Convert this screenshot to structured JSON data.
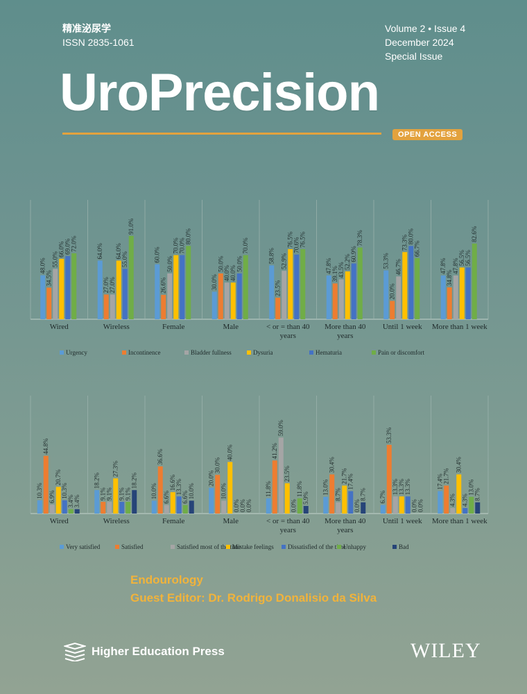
{
  "journal": {
    "chinese_title": "精准泌尿学",
    "issn": "ISSN 2835-1061",
    "volume_issue": "Volume  2 • Issue  4",
    "date": "December 2024",
    "special": "Special Issue",
    "name": "UroPrecision",
    "open_access": "OPEN ACCESS"
  },
  "colors": {
    "urgency": "#5b9bd5",
    "incontinence": "#ed7d31",
    "bladder": "#a5a5a5",
    "dysuria": "#ffc000",
    "hematuria": "#4472c4",
    "pain": "#70ad47",
    "very_satisfied": "#5b9bd5",
    "satisfied": "#ed7d31",
    "satisfied_most": "#a5a5a5",
    "mistake": "#ffc000",
    "dissatisfied": "#4472c4",
    "unhappy": "#70ad47",
    "bad": "#264478",
    "accent": "#f1b33b"
  },
  "chart_data": [
    {
      "type": "bar",
      "categories": [
        "Wired",
        "Wireless",
        "Female",
        "Male",
        "< or = than 40 years",
        "More than 40 years",
        "Until 1 week",
        "More than 1 week"
      ],
      "ylim": [
        0,
        100
      ],
      "series": [
        {
          "name": "Urgency",
          "values": [
            48.0,
            64.0,
            60.0,
            30.0,
            58.8,
            47.8,
            53.3,
            47.8
          ]
        },
        {
          "name": "Incontinence",
          "values": [
            34.5,
            27.0,
            26.6,
            50.0,
            23.5,
            39.1,
            20.0,
            34.8
          ]
        },
        {
          "name": "Bladder fullness",
          "values": [
            55.0,
            27.0,
            50.0,
            40.0,
            52.9,
            43.5,
            46.7,
            47.8
          ]
        },
        {
          "name": "Dysuria",
          "values": [
            66.0,
            64.0,
            70.0,
            40.0,
            76.5,
            52.2,
            73.3,
            56.5
          ]
        },
        {
          "name": "Hematuria",
          "values": [
            69.0,
            55.0,
            70.0,
            50.0,
            70.6,
            60.9,
            80.0,
            56.5
          ]
        },
        {
          "name": "Pain or discomfort",
          "values": [
            72.0,
            91.0,
            80.0,
            70.0,
            76.5,
            78.3,
            66.7,
            82.6
          ]
        }
      ]
    },
    {
      "type": "bar",
      "categories": [
        "Wired",
        "Wireless",
        "Female",
        "Male",
        "< or = than 40 years",
        "More than 40 years",
        "Until 1 week",
        "More than 1 week"
      ],
      "ylim": [
        0,
        70
      ],
      "series": [
        {
          "name": "Very satisfied",
          "values": [
            10.3,
            18.2,
            10.0,
            20.0,
            11.8,
            13.0,
            6.7,
            17.4
          ]
        },
        {
          "name": "Satisfied",
          "values": [
            44.8,
            9.1,
            36.6,
            30.0,
            41.2,
            30.4,
            53.3,
            21.7
          ]
        },
        {
          "name": "Satisfied most of the time",
          "values": [
            6.9,
            9.1,
            6.6,
            10.0,
            59.0,
            8.7,
            13.3,
            4.3
          ]
        },
        {
          "name": "Mistake feelings",
          "values": [
            20.7,
            27.3,
            16.6,
            40.0,
            23.5,
            21.7,
            13.3,
            30.4
          ]
        },
        {
          "name": "Dissatisfied of the time",
          "values": [
            10.3,
            9.1,
            13.3,
            0.0,
            0.0,
            17.4,
            13.3,
            4.3
          ]
        },
        {
          "name": "Unhappy",
          "values": [
            3.4,
            9.1,
            6.6,
            0.0,
            11.8,
            0.0,
            0.0,
            13.0
          ]
        },
        {
          "name": "Bad",
          "values": [
            3.4,
            18.2,
            10.0,
            0.0,
            5.9,
            8.7,
            0.0,
            8.7
          ]
        }
      ]
    }
  ],
  "footer": {
    "section": "Endourology",
    "guest_editor": "Guest Editor: Dr. Rodrigo Donalisio da Silva",
    "publisher": "Higher Education Press",
    "wiley": "WILEY"
  }
}
